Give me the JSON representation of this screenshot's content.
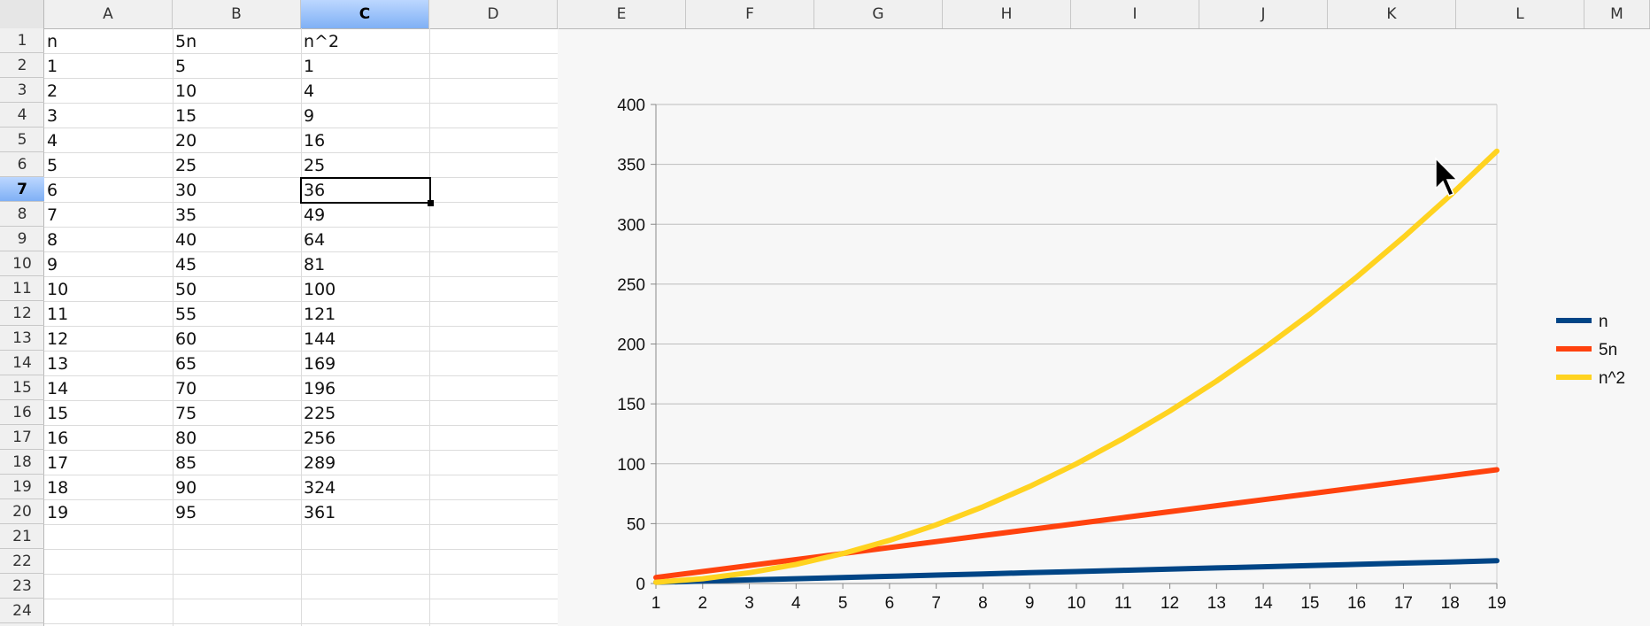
{
  "spreadsheet": {
    "columns": [
      "A",
      "B",
      "C",
      "D",
      "E",
      "F",
      "G",
      "H",
      "I",
      "J",
      "K",
      "L",
      "M"
    ],
    "selected_column": "C",
    "rows": [
      "1",
      "2",
      "3",
      "4",
      "5",
      "6",
      "7",
      "8",
      "9",
      "10",
      "11",
      "12",
      "13",
      "14",
      "15",
      "16",
      "17",
      "18",
      "19",
      "20",
      "21",
      "22",
      "23",
      "24"
    ],
    "selected_row": "7",
    "cells": [
      [
        "n",
        "5n",
        "n^2"
      ],
      [
        "1",
        "5",
        "1"
      ],
      [
        "2",
        "10",
        "4"
      ],
      [
        "3",
        "15",
        "9"
      ],
      [
        "4",
        "20",
        "16"
      ],
      [
        "5",
        "25",
        "25"
      ],
      [
        "6",
        "30",
        "36"
      ],
      [
        "7",
        "35",
        "49"
      ],
      [
        "8",
        "40",
        "64"
      ],
      [
        "9",
        "45",
        "81"
      ],
      [
        "10",
        "50",
        "100"
      ],
      [
        "11",
        "55",
        "121"
      ],
      [
        "12",
        "60",
        "144"
      ],
      [
        "13",
        "65",
        "169"
      ],
      [
        "14",
        "70",
        "196"
      ],
      [
        "15",
        "75",
        "225"
      ],
      [
        "16",
        "80",
        "256"
      ],
      [
        "17",
        "85",
        "289"
      ],
      [
        "18",
        "90",
        "324"
      ],
      [
        "19",
        "95",
        "361"
      ]
    ],
    "active_cell": "C7"
  },
  "chart_data": {
    "type": "line",
    "x": [
      1,
      2,
      3,
      4,
      5,
      6,
      7,
      8,
      9,
      10,
      11,
      12,
      13,
      14,
      15,
      16,
      17,
      18,
      19
    ],
    "series": [
      {
        "name": "n",
        "color": "#004586",
        "values": [
          1,
          2,
          3,
          4,
          5,
          6,
          7,
          8,
          9,
          10,
          11,
          12,
          13,
          14,
          15,
          16,
          17,
          18,
          19
        ]
      },
      {
        "name": "5n",
        "color": "#ff420e",
        "values": [
          5,
          10,
          15,
          20,
          25,
          30,
          35,
          40,
          45,
          50,
          55,
          60,
          65,
          70,
          75,
          80,
          85,
          90,
          95
        ]
      },
      {
        "name": "n^2",
        "color": "#ffd320",
        "values": [
          1,
          4,
          9,
          16,
          25,
          36,
          49,
          64,
          81,
          100,
          121,
          144,
          169,
          196,
          225,
          256,
          289,
          324,
          361
        ]
      }
    ],
    "ylim": [
      0,
      400
    ],
    "yticks": [
      "0",
      "50",
      "100",
      "150",
      "200",
      "250",
      "300",
      "350",
      "400"
    ],
    "xticks": [
      "1",
      "2",
      "3",
      "4",
      "5",
      "6",
      "7",
      "8",
      "9",
      "10",
      "11",
      "12",
      "13",
      "14",
      "15",
      "16",
      "17",
      "18",
      "19"
    ],
    "grid": "horizontal",
    "legend": "right"
  }
}
